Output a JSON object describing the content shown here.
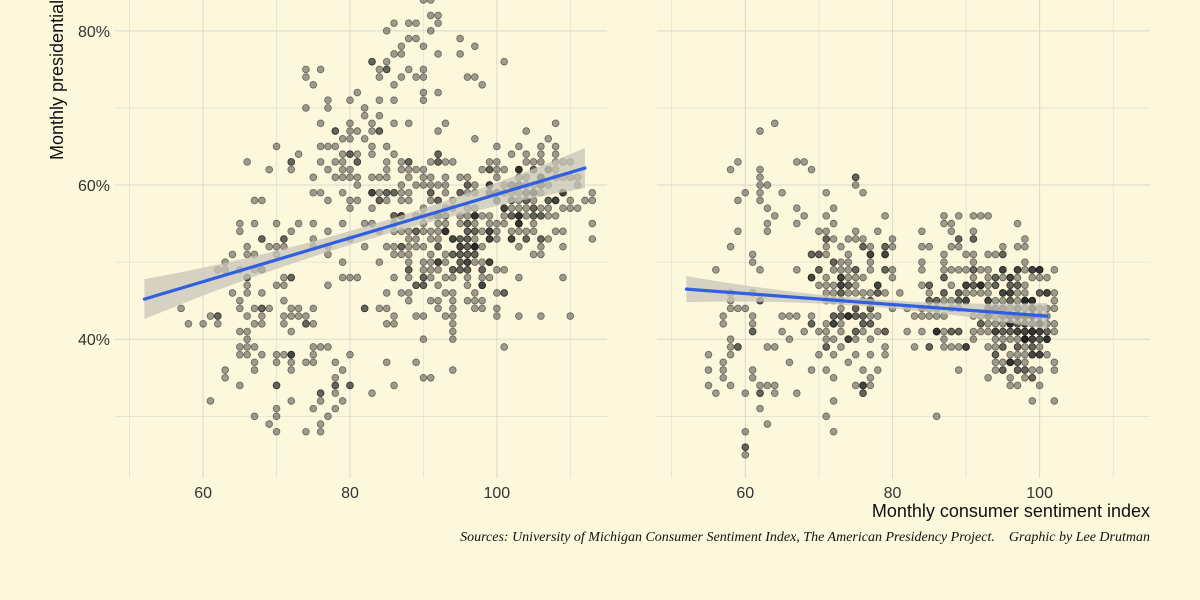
{
  "theme": {
    "background": "#fdf8dc",
    "grid_color": "#d9d9cf",
    "point_color": "#1a1a1a",
    "line_color": "#3060e0",
    "band_color": "#c8c6b8"
  },
  "captions": {
    "sources": "Sources: University of Michigan Consumer Sentiment Index, The American Presidency Project.",
    "credit": "Graphic by Lee Drutman"
  },
  "chart_data": [
    {
      "type": "scatter",
      "panel": "left",
      "title": "",
      "xlabel": "",
      "ylabel": "Monthly presidential approval",
      "xlim": [
        48,
        115
      ],
      "ylim": [
        22,
        84
      ],
      "x_ticks": [
        60,
        80,
        100
      ],
      "x_tick_labels": [
        "60",
        "80",
        "100"
      ],
      "y_ticks": [
        40,
        60,
        80
      ],
      "y_tick_labels": [
        "40%",
        "60%",
        "80%"
      ],
      "trend": {
        "x": [
          52,
          112
        ],
        "y": [
          45.2,
          62.2
        ],
        "band_halfwidth_ends": 2.6,
        "band_halfwidth_mid": 0.9
      },
      "clusters": [
        {
          "cx": 94,
          "cy": 52,
          "sx": 5,
          "sy": 6,
          "n": 260
        },
        {
          "cx": 106,
          "cy": 59,
          "sx": 4,
          "sy": 3.5,
          "n": 120
        },
        {
          "cx": 82,
          "cy": 62,
          "sx": 5,
          "sy": 7,
          "n": 120
        },
        {
          "cx": 67,
          "cy": 44,
          "sx": 4,
          "sy": 8,
          "n": 90
        },
        {
          "cx": 76,
          "cy": 36,
          "sx": 4,
          "sy": 4,
          "n": 40
        },
        {
          "cx": 90,
          "cy": 77,
          "sx": 5,
          "sy": 4,
          "n": 40
        }
      ],
      "seed": 7
    },
    {
      "type": "scatter",
      "panel": "right",
      "title": "",
      "xlabel": "Monthly consumer sentiment index",
      "ylabel": "",
      "xlim": [
        48,
        115
      ],
      "ylim": [
        22,
        84
      ],
      "x_ticks": [
        60,
        80,
        100
      ],
      "x_tick_labels": [
        "60",
        "80",
        "100"
      ],
      "y_ticks": [
        40,
        60,
        80
      ],
      "trend": {
        "x": [
          52,
          101
        ],
        "y": [
          46.5,
          43.0
        ],
        "band_halfwidth_ends": 1.7,
        "band_halfwidth_mid": 0.5
      },
      "clusters": [
        {
          "cx": 98,
          "cy": 42,
          "sx": 2.5,
          "sy": 4,
          "n": 200
        },
        {
          "cx": 74,
          "cy": 46,
          "sx": 3,
          "sy": 6,
          "n": 170
        },
        {
          "cx": 90,
          "cy": 46,
          "sx": 5,
          "sy": 5,
          "n": 160
        },
        {
          "cx": 62,
          "cy": 39,
          "sx": 4,
          "sy": 7,
          "n": 60
        },
        {
          "cx": 63,
          "cy": 60,
          "sx": 3,
          "sy": 4,
          "n": 18
        }
      ],
      "seed": 13
    }
  ]
}
